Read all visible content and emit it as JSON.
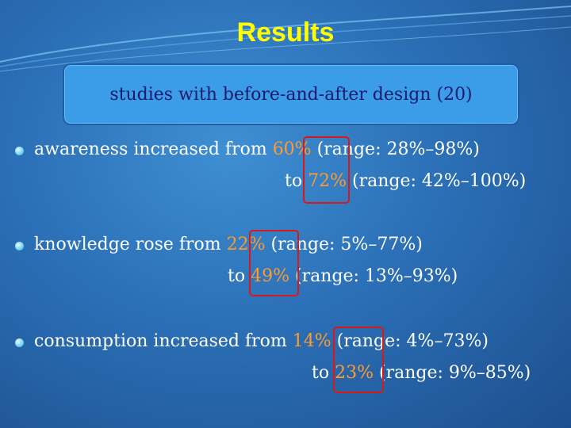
{
  "slide": {
    "title": "Results",
    "subtitle": "studies with before-and-after design (20)"
  },
  "items": [
    {
      "line1": {
        "prefix": "awareness increased from ",
        "value": "60%",
        "suffix": " (range: 28%–98%)"
      },
      "line2": {
        "prefix": "to ",
        "value": "72%",
        "suffix": " (range: 42%–100%)"
      }
    },
    {
      "line1": {
        "prefix": "knowledge rose from ",
        "value": "22%",
        "suffix": " (range: 5%–77%)"
      },
      "line2": {
        "prefix": "to ",
        "value": "49%",
        "suffix": " (range: 13%–93%)"
      }
    },
    {
      "line1": {
        "prefix": "consumption increased from ",
        "value": "14%",
        "suffix": " (range: 4%–73%)"
      },
      "line2": {
        "prefix": "to ",
        "value": "23%",
        "suffix": " (range: 9%–85%)"
      }
    }
  ],
  "colors": {
    "title": "#ffff00",
    "highlight": "#ff9a2e",
    "frame": "#d91818",
    "subtitle_box": "#3b9ce8"
  }
}
